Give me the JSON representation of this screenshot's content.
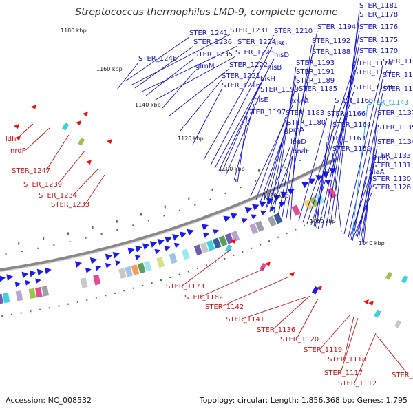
{
  "title": "Streptococcus thermophilus LMD-9, complete genome",
  "footer": {
    "accession": "Accession: NC_008532",
    "topology": "Topology: circular; Length: 1,856,368 bp; Genes: 1,795"
  },
  "kbp_labels": [
    "1180 kbp",
    "1160 kbp",
    "1140 kbp",
    "1120 kbp",
    "1100 kbp",
    "1080 kbp",
    "1060 kbp",
    "1040 kbp"
  ],
  "blue_labels": [
    "STER_1181",
    "STER_1178",
    "STER_1176",
    "STER_1175",
    "STER_1170",
    "STER_1161",
    "STER_1147",
    "STER_1145",
    "STER_1137",
    "STER_1135",
    "STER_1134",
    "STER_1133",
    "STER_1131",
    "STER_1130",
    "STER_1126",
    "STER_1194",
    "STER_1192",
    "STER_1188",
    "STER_1193",
    "STER_1191",
    "STER_1189",
    "STER_1185",
    "STER_1174",
    "STER_1171",
    "STER_1169",
    "STER_1168",
    "STER_1166",
    "STER_1164",
    "STER_1163",
    "STER_1159",
    "STER_1210",
    "hisG",
    "hisD",
    "hisB",
    "hisH",
    "hisE",
    "STER_1199",
    "STER_1197",
    "xseA",
    "STER_1183",
    "STER_1180",
    "gpmA",
    "leuD",
    "dnaE",
    "rplS",
    "miaA",
    "STER_1241",
    "STER_1231",
    "STER_1236",
    "STER_1224",
    "STER_1235",
    "STER_1223",
    "glmM",
    "STER_1222",
    "STER_1221",
    "STER_1216",
    "STER_1246"
  ],
  "cyan_labels": [
    "STER_t1143"
  ],
  "red_labels": [
    "ldh",
    "nrdF",
    "STER_1247",
    "STER_1239",
    "STER_1234",
    "STER_1233",
    "STER_1173",
    "STER_1162",
    "STER_1142",
    "STER_1141",
    "STER_1136",
    "STER_1120",
    "STER_1119",
    "STER_1118",
    "STER_1117",
    "STER_1112",
    "STER_1111"
  ],
  "colors": {
    "backbone": "#777777",
    "forward_genes": "#1a1aee",
    "reverse_genes": "#ee1111",
    "trna": "#22bbee",
    "green_dots": "#2a8a2a",
    "blue_lines": "#1010cc",
    "red_lines": "#cc1111"
  }
}
